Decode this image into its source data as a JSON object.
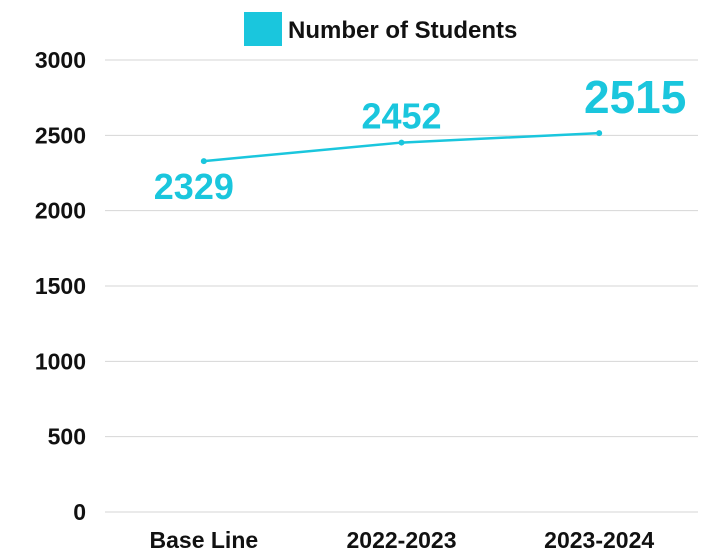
{
  "chart_data": {
    "type": "line",
    "categories": [
      "Base Line",
      "2022-2023",
      "2023-2024"
    ],
    "series": [
      {
        "name": "Number of Students",
        "values": [
          2329,
          2452,
          2515
        ],
        "color": "#1ac6dd"
      }
    ],
    "data_labels": [
      "2329",
      "2452",
      "2515"
    ],
    "y_ticks": [
      "0",
      "500",
      "1000",
      "1500",
      "2000",
      "2500",
      "3000"
    ],
    "ylim": [
      0,
      3000
    ],
    "grid": true,
    "legend_position": "top-center",
    "title": "",
    "xlabel": "",
    "ylabel": ""
  }
}
